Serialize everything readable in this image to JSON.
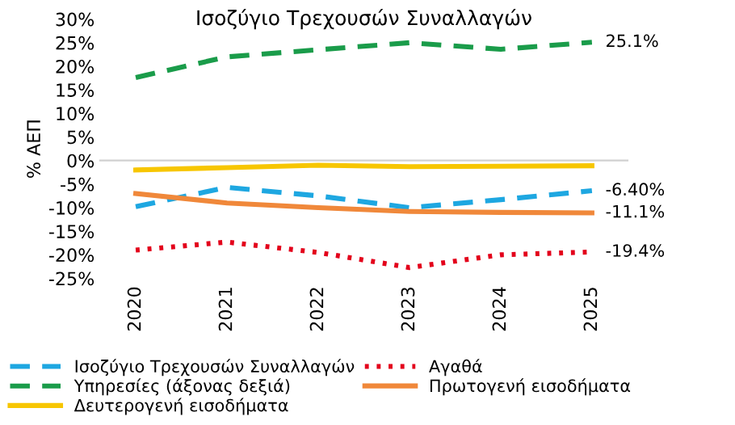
{
  "chart_data": {
    "type": "line",
    "title": "Ισοζύγιο Τρεχουσών Συναλλαγών",
    "ylabel": "% ΑΕΠ",
    "categories": [
      "2020",
      "2021",
      "2022",
      "2023",
      "2024",
      "2025"
    ],
    "series": [
      {
        "name": "Ισοζύγιο Τρεχουσών Συναλλαγών",
        "color": "#1ea7e1",
        "line_style": "dashed",
        "values": [
          -9.8,
          -5.7,
          -7.5,
          -10,
          -8.3,
          -6.4
        ]
      },
      {
        "name": "Αγαθά",
        "color": "#e3001b",
        "line_style": "dotted",
        "values": [
          -19,
          -17.3,
          -19.5,
          -22.7,
          -20,
          -19.4
        ]
      },
      {
        "name": "Υπηρεσίες (άξονας δεξιά)",
        "color": "#1a9c4a",
        "line_style": "dashed",
        "values": [
          17.6,
          22,
          23.5,
          25,
          23.6,
          25.1
        ]
      },
      {
        "name": "Πρωτογενή εισοδήματα",
        "color": "#f0883a",
        "line_style": "solid",
        "values": [
          -7,
          -9,
          -10,
          -10.8,
          -11,
          -11.1
        ]
      },
      {
        "name": "Δευτερογενή εισοδήματα",
        "color": "#f7c600",
        "line_style": "solid",
        "values": [
          -2,
          -1.5,
          -1,
          -1.3,
          -1.2,
          -1.1
        ]
      }
    ],
    "annotations": [
      {
        "text": "25.1%",
        "x": "2025",
        "y": 25.1
      },
      {
        "text": "-6.40%",
        "x": "2025",
        "y": -6.4
      },
      {
        "text": "-11.1%",
        "x": "2025",
        "y": -11.1
      },
      {
        "text": "-19.4%",
        "x": "2025",
        "y": -19.4
      }
    ],
    "ref_lines": [
      {
        "axis": "y",
        "value": 0,
        "color": "#d0d0d0"
      }
    ],
    "ylim": [
      -25,
      30
    ],
    "yticks": [
      {
        "value": -25,
        "label": "-25%"
      },
      {
        "value": -20,
        "label": "-20%"
      },
      {
        "value": -15,
        "label": "-15%"
      },
      {
        "value": -10,
        "label": "-10%"
      },
      {
        "value": -5,
        "label": "-5%"
      },
      {
        "value": 0,
        "label": "0%"
      },
      {
        "value": 5,
        "label": "5%"
      },
      {
        "value": 10,
        "label": "10%"
      },
      {
        "value": 15,
        "label": "15%"
      },
      {
        "value": 20,
        "label": "20%"
      },
      {
        "value": 25,
        "label": "25%"
      },
      {
        "value": 30,
        "label": "30%"
      }
    ],
    "grid": false,
    "legend": "bottom",
    "marker": "none"
  }
}
